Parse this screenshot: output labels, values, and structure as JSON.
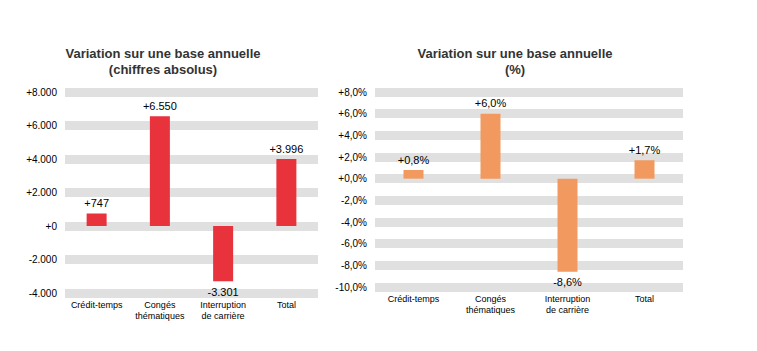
{
  "chart_data": [
    {
      "type": "bar",
      "title": "Variation sur une base annuelle\n(chiffres absolus)",
      "categories": [
        "Crédit-temps",
        "Congés\nthématiques",
        "Interruption\nde carrière",
        "Total"
      ],
      "values": [
        747,
        6550,
        -3301,
        3996
      ],
      "value_labels": [
        "+747",
        "+6.550",
        "-3.301",
        "+3.996"
      ],
      "color": "#e8333c",
      "ylim": [
        -4000,
        8000
      ],
      "yticks": [
        {
          "value": -4000,
          "label": "-4.000"
        },
        {
          "value": -2000,
          "label": "-2.000"
        },
        {
          "value": 0,
          "label": "+0"
        },
        {
          "value": 2000,
          "label": "+2.000"
        },
        {
          "value": 4000,
          "label": "+4.000"
        },
        {
          "value": 6000,
          "label": "+6.000"
        },
        {
          "value": 8000,
          "label": "+8.000"
        }
      ],
      "grid": true,
      "data_labels": true
    },
    {
      "type": "bar",
      "title": "Variation sur une base annuelle\n(%)",
      "categories": [
        "Crédit-temps",
        "Congés\nthématiques",
        "Interruption\nde carrière",
        "Total"
      ],
      "values": [
        0.8,
        6.0,
        -8.6,
        1.7
      ],
      "value_labels": [
        "+0,8%",
        "+6,0%",
        "-8,6%",
        "+1,7%"
      ],
      "color": "#f1995f",
      "ylim": [
        -10,
        8
      ],
      "yticks": [
        {
          "value": -10,
          "label": "-10,0%"
        },
        {
          "value": -8,
          "label": "-8,0%"
        },
        {
          "value": -6,
          "label": "-6,0%"
        },
        {
          "value": -4,
          "label": "-4,0%"
        },
        {
          "value": -2,
          "label": "-2,0%"
        },
        {
          "value": 0,
          "label": "+0,0%"
        },
        {
          "value": 2,
          "label": "+2,0%"
        },
        {
          "value": 4,
          "label": "+4,0%"
        },
        {
          "value": 6,
          "label": "+6,0%"
        },
        {
          "value": 8,
          "label": "+8,0%"
        }
      ],
      "grid": true,
      "data_labels": true
    }
  ]
}
